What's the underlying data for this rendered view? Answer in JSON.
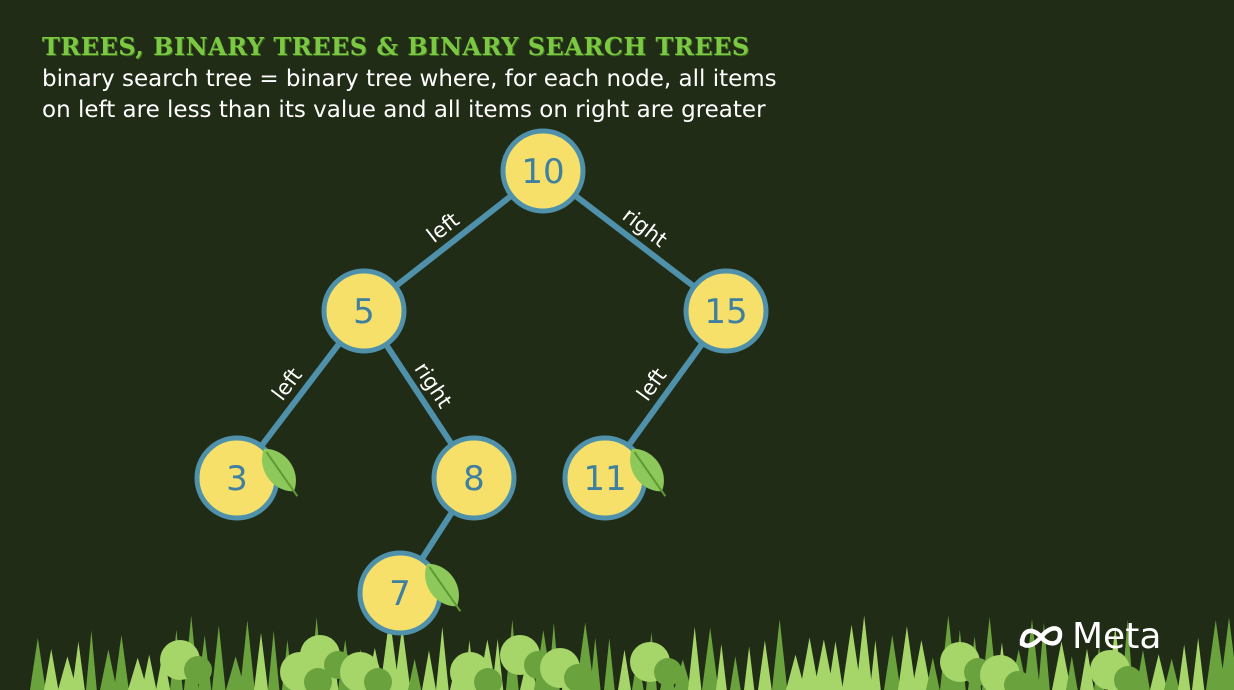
{
  "header": {
    "title": "TREES, BINARY TREES & BINARY SEARCH TREES",
    "subtitle_line1": "binary search tree = binary tree where, for each node, all items",
    "subtitle_line2": "on left are less than its value and all items on right are greater"
  },
  "tree": {
    "nodes": [
      {
        "id": "n10",
        "label": "10",
        "leaf": false
      },
      {
        "id": "n5",
        "label": "5",
        "leaf": false
      },
      {
        "id": "n15",
        "label": "15",
        "leaf": false
      },
      {
        "id": "n3",
        "label": "3",
        "leaf": true
      },
      {
        "id": "n8",
        "label": "8",
        "leaf": false
      },
      {
        "id": "n11",
        "label": "11",
        "leaf": true
      },
      {
        "id": "n7",
        "label": "7",
        "leaf": true
      }
    ],
    "edges": [
      {
        "from": "n10",
        "to": "n5",
        "label": "left"
      },
      {
        "from": "n10",
        "to": "n15",
        "label": "right"
      },
      {
        "from": "n5",
        "to": "n3",
        "label": "left"
      },
      {
        "from": "n5",
        "to": "n8",
        "label": "right"
      },
      {
        "from": "n15",
        "to": "n11",
        "label": "left"
      },
      {
        "from": "n8",
        "to": "n7",
        "label": ""
      }
    ]
  },
  "brand": {
    "name": "Meta",
    "logo_icon": "meta-infinity-logo-icon"
  },
  "colors": {
    "background": "#212c16",
    "title_green": "#7bc843",
    "node_fill": "#f6e06a",
    "node_stroke": "#4f90aa",
    "node_text": "#3f7fa0",
    "edge": "#4f90aa",
    "leaf": "#8dc95a",
    "forest_dark": "#6aa33e",
    "forest_light": "#a6d66a"
  }
}
